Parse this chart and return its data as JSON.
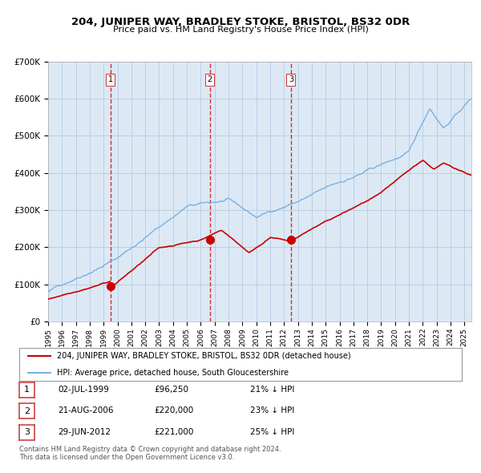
{
  "title": "204, JUNIPER WAY, BRADLEY STOKE, BRISTOL, BS32 0DR",
  "subtitle": "Price paid vs. HM Land Registry's House Price Index (HPI)",
  "background_color": "#dce9f5",
  "plot_bg_color": "#dce9f5",
  "hpi_color": "#7ab0e0",
  "price_color": "#cc0000",
  "marker_color": "#cc0000",
  "vline_color": "#cc0000",
  "grid_color": "#b0c4de",
  "ylim": [
    0,
    700000
  ],
  "yticks": [
    0,
    100000,
    200000,
    300000,
    400000,
    500000,
    600000,
    700000
  ],
  "transactions": [
    {
      "date": "1999-07-02",
      "price": 96250,
      "label": "1",
      "x_val": 1999.5
    },
    {
      "date": "2006-08-21",
      "price": 220000,
      "label": "2",
      "x_val": 2006.64
    },
    {
      "date": "2012-06-29",
      "price": 221000,
      "label": "3",
      "x_val": 2012.5
    }
  ],
  "legend_entries": [
    {
      "label": "204, JUNIPER WAY, BRADLEY STOKE, BRISTOL, BS32 0DR (detached house)",
      "color": "#cc0000"
    },
    {
      "label": "HPI: Average price, detached house, South Gloucestershire",
      "color": "#7ab0e0"
    }
  ],
  "table_rows": [
    {
      "num": "1",
      "date": "02-JUL-1999",
      "price": "£96,250",
      "hpi": "21% ↓ HPI"
    },
    {
      "num": "2",
      "date": "21-AUG-2006",
      "price": "£220,000",
      "hpi": "23% ↓ HPI"
    },
    {
      "num": "3",
      "date": "29-JUN-2012",
      "price": "£221,000",
      "hpi": "25% ↓ HPI"
    }
  ],
  "footer": "Contains HM Land Registry data © Crown copyright and database right 2024.\nThis data is licensed under the Open Government Licence v3.0.",
  "xmin": 1995.0,
  "xmax": 2025.5
}
